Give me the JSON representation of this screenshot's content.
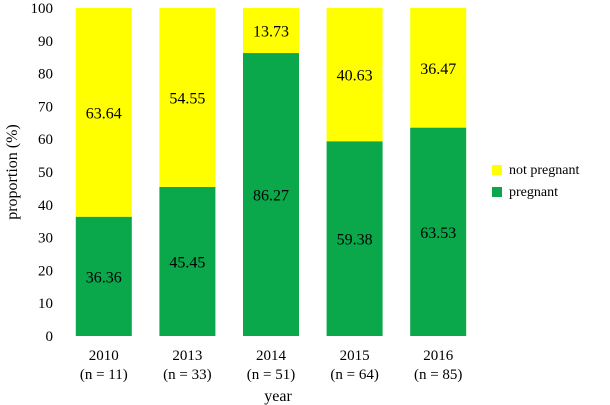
{
  "chart_data": {
    "type": "bar",
    "stacked": true,
    "categories": [
      "2010",
      "2013",
      "2014",
      "2015",
      "2016"
    ],
    "category_sample_sizes": [
      "(n = 11)",
      "(n = 33)",
      "(n = 51)",
      "(n = 64)",
      "(n = 85)"
    ],
    "series": [
      {
        "name": "pregnant",
        "color": "#0aa84a",
        "values": [
          36.36,
          45.45,
          86.27,
          59.38,
          63.53
        ]
      },
      {
        "name": "not pregnant",
        "color": "#ffff00",
        "values": [
          63.64,
          54.55,
          13.73,
          40.63,
          36.47
        ]
      }
    ],
    "data_labels": {
      "pregnant": [
        "36.36",
        "45.45",
        "86.27",
        "59.38",
        "63.53"
      ],
      "not pregnant": [
        "63.64",
        "54.55",
        "13.73",
        "40.63",
        "36.47"
      ]
    },
    "xlabel": "year",
    "ylabel": "proportion (%)",
    "ylim": [
      0,
      100
    ],
    "yticks": [
      0,
      10,
      20,
      30,
      40,
      50,
      60,
      70,
      80,
      90,
      100
    ],
    "grid": false,
    "legend_position": "right",
    "legend": [
      {
        "name": "not pregnant",
        "color": "#ffff00"
      },
      {
        "name": "pregnant",
        "color": "#0aa84a"
      }
    ]
  }
}
